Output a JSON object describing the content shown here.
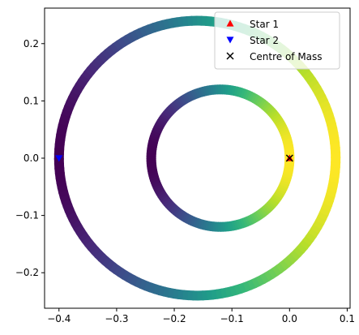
{
  "chart_data": {
    "type": "scatter",
    "xlim": [
      -0.425,
      0.105
    ],
    "ylim": [
      -0.262,
      0.262
    ],
    "xticks": [
      "-0.4",
      "-0.3",
      "-0.2",
      "-0.1",
      "0.0",
      "0.1"
    ],
    "xtick_values": [
      -0.4,
      -0.3,
      -0.2,
      -0.1,
      0.0,
      0.1
    ],
    "yticks": [
      "0.2",
      "0.1",
      "0.0",
      "-0.1",
      "-0.2"
    ],
    "ytick_values": [
      0.2,
      0.1,
      0.0,
      -0.1,
      -0.2
    ],
    "colormap": "viridis",
    "orbits": [
      {
        "name": "Star 1 orbit",
        "center": [
          -0.12,
          0.0
        ],
        "radius": 0.12
      },
      {
        "name": "Star 2 orbit",
        "center": [
          -0.16,
          0.0
        ],
        "radius": 0.24
      }
    ],
    "markers": [
      {
        "label": "Star 1",
        "symbol": "triangle-up",
        "color": "#ff0000",
        "x": 0.0,
        "y": 0.0
      },
      {
        "label": "Star 2",
        "symbol": "triangle-down",
        "color": "#0000ff",
        "x": -0.4,
        "y": 0.0
      },
      {
        "label": "Centre of Mass",
        "symbol": "x",
        "color": "#000000",
        "x": 0.0,
        "y": 0.0
      }
    ],
    "legend_position": "top-right",
    "grid": false
  }
}
